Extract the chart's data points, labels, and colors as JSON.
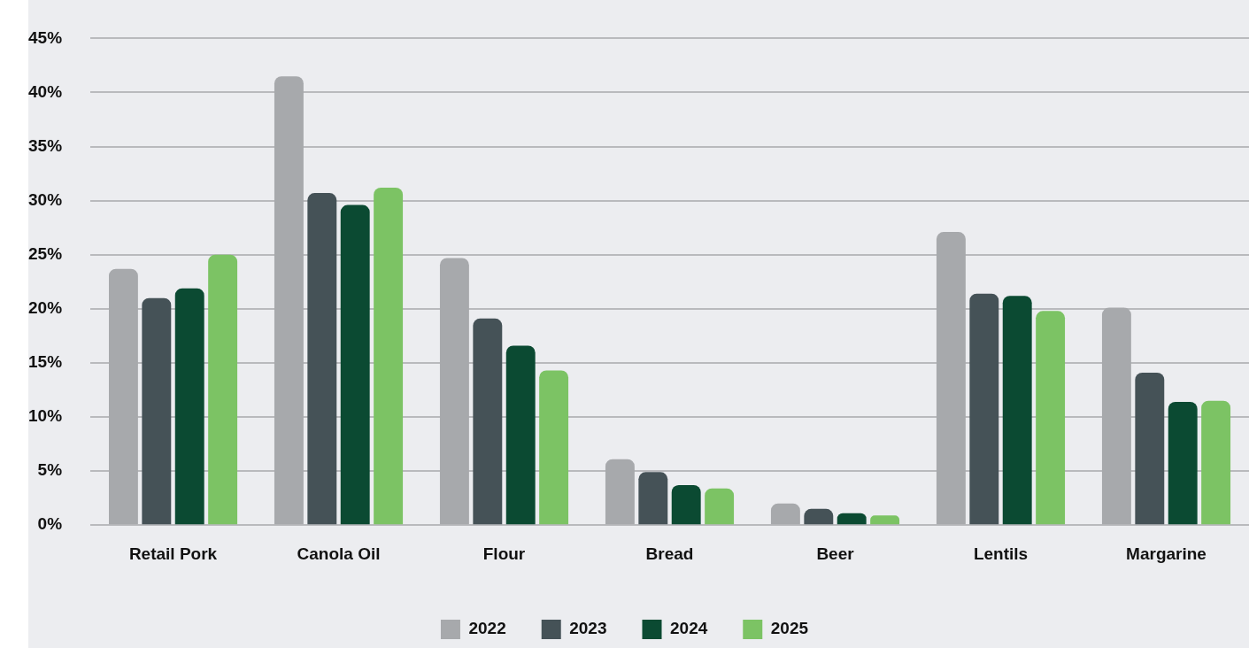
{
  "chart_data": {
    "type": "bar",
    "categories": [
      "Retail Pork",
      "Canola Oil",
      "Flour",
      "Bread",
      "Beer",
      "Lentils",
      "Margarine"
    ],
    "series": [
      {
        "name": "2022",
        "color": "#a7a9ac",
        "values": [
          23.7,
          41.5,
          24.7,
          6.1,
          2.0,
          27.1,
          20.1
        ]
      },
      {
        "name": "2023",
        "color": "#455257",
        "values": [
          21.0,
          30.7,
          19.1,
          4.9,
          1.5,
          21.4,
          14.1
        ]
      },
      {
        "name": "2024",
        "color": "#0b4a32",
        "values": [
          21.9,
          29.6,
          16.6,
          3.7,
          1.1,
          21.2,
          11.4
        ]
      },
      {
        "name": "2025",
        "color": "#7cc364",
        "values": [
          25.0,
          31.2,
          14.3,
          3.4,
          0.9,
          19.8,
          11.5
        ]
      }
    ],
    "ylim": [
      0,
      45
    ],
    "yticks": [
      {
        "value": 0,
        "label": "0%"
      },
      {
        "value": 5,
        "label": "5%"
      },
      {
        "value": 10,
        "label": "10%"
      },
      {
        "value": 15,
        "label": "15%"
      },
      {
        "value": 20,
        "label": "20%"
      },
      {
        "value": 25,
        "label": "25%"
      },
      {
        "value": 30,
        "label": "30%"
      },
      {
        "value": 35,
        "label": "35%"
      },
      {
        "value": 40,
        "label": "40%"
      },
      {
        "value": 45,
        "label": "45%"
      }
    ],
    "grid": "y",
    "legend": "bottom"
  }
}
